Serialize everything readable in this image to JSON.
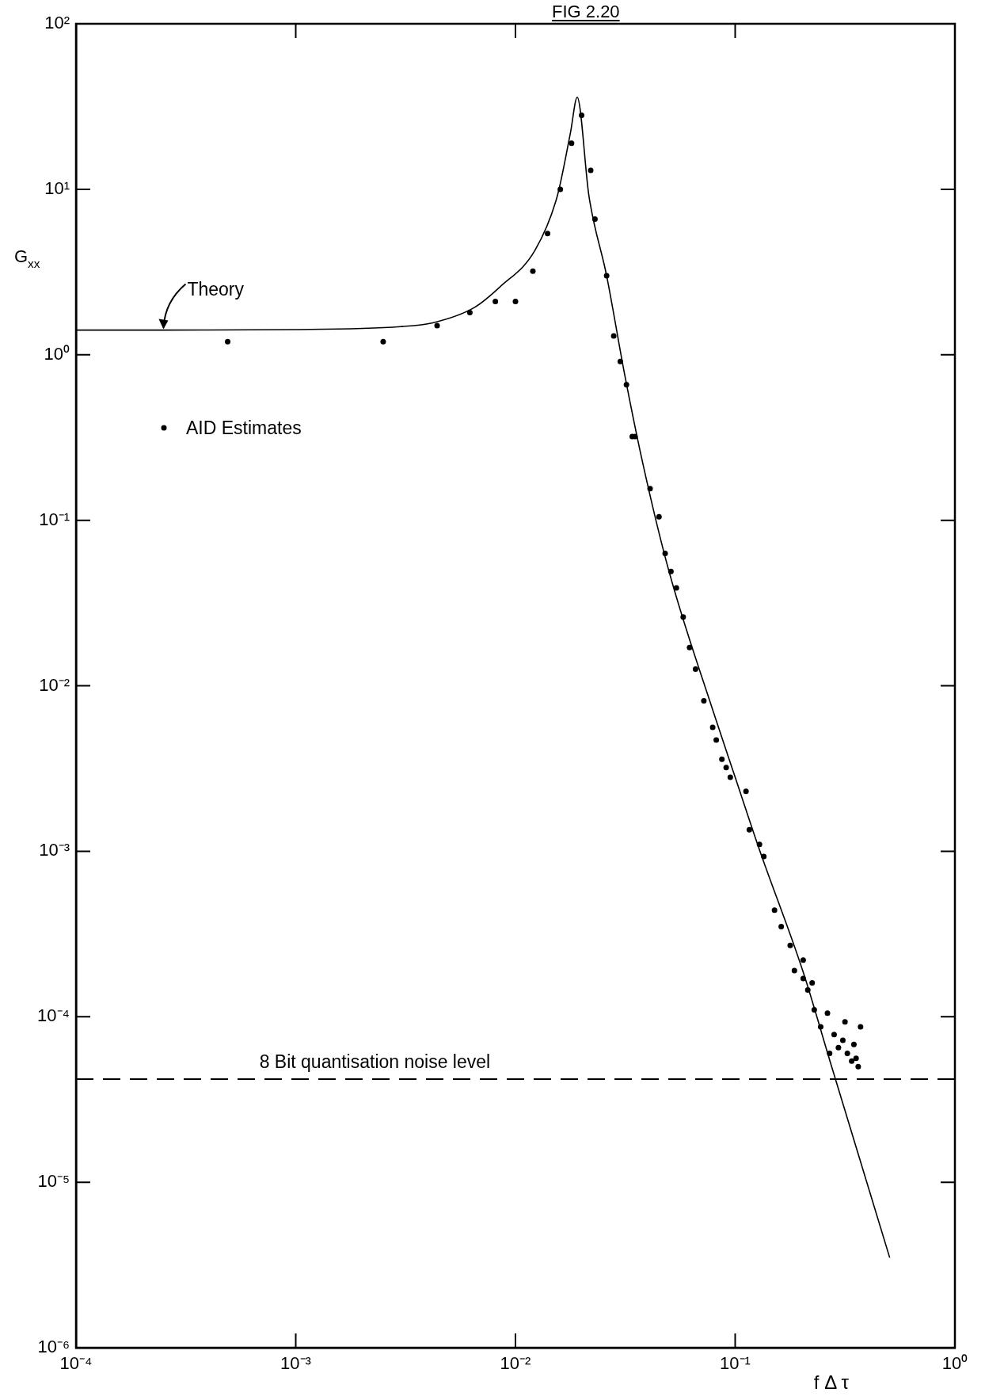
{
  "chart_data": {
    "type": "scatter",
    "title": "FIG 2.20",
    "xlabel": "f Δ τ",
    "ylabel": "G$_{xx}$",
    "log": "xy",
    "legend": "left",
    "xlim": [
      0.0001,
      1
    ],
    "ylim": [
      1e-06,
      100
    ],
    "xticks": [
      {
        "value": 0.0001,
        "label": "10⁻⁴"
      },
      {
        "value": 0.001,
        "label": "10⁻³"
      },
      {
        "value": 0.01,
        "label": "10⁻²"
      },
      {
        "value": 0.1,
        "label": "10⁻¹"
      },
      {
        "value": 1,
        "label": "10⁰"
      }
    ],
    "yticks": [
      {
        "value": 1e-06,
        "label": "10⁻⁶"
      },
      {
        "value": 1e-05,
        "label": "10⁻⁵"
      },
      {
        "value": 0.0001,
        "label": "10⁻⁴"
      },
      {
        "value": 0.001,
        "label": "10⁻³"
      },
      {
        "value": 0.01,
        "label": "10⁻²"
      },
      {
        "value": 0.1,
        "label": "10⁻¹"
      },
      {
        "value": 1,
        "label": "10⁰"
      },
      {
        "value": 10,
        "label": "10¹"
      },
      {
        "value": 100,
        "label": "10²"
      }
    ],
    "series": [
      {
        "type": "line",
        "color": "#000000",
        "marker": "none",
        "line_style": "solid",
        "x": [
          0.0001,
          0.00025,
          0.001,
          0.003,
          0.0042,
          0.0065,
          0.0085,
          0.0123,
          0.0155,
          0.0178,
          0.0191,
          0.0216,
          0.026,
          0.0314,
          0.038,
          0.05,
          0.08,
          0.1,
          0.128,
          0.204,
          0.27,
          0.505
        ],
        "values": [
          1.41,
          1.41,
          1.42,
          1.48,
          1.56,
          1.93,
          2.57,
          4.3,
          9.1,
          22,
          36,
          9.1,
          3.0,
          0.76,
          0.22,
          0.049,
          0.0068,
          0.0028,
          0.00105,
          0.000186,
          5.4e-05,
          3.5e-06
        ]
      },
      {
        "name": "AID Estimates",
        "color": "#000000",
        "marker": "circle",
        "x": [
          0.00049,
          0.0025,
          0.0044,
          0.0062,
          0.0081,
          0.01,
          0.012,
          0.014,
          0.016,
          0.018,
          0.02,
          0.022,
          0.023,
          0.026,
          0.028,
          0.03,
          0.032,
          0.034,
          0.035,
          0.041,
          0.045,
          0.048,
          0.051,
          0.054,
          0.058,
          0.062,
          0.066,
          0.072,
          0.079,
          0.082,
          0.087,
          0.091,
          0.095,
          0.112,
          0.116,
          0.129,
          0.135,
          0.151,
          0.162,
          0.178,
          0.186,
          0.204,
          0.204,
          0.214,
          0.224,
          0.229,
          0.245,
          0.263,
          0.269,
          0.282,
          0.295,
          0.309,
          0.316,
          0.324,
          0.339,
          0.347,
          0.355,
          0.363,
          0.372
        ],
        "values": [
          1.2,
          1.2,
          1.5,
          1.8,
          2.1,
          2.1,
          3.2,
          5.4,
          10,
          19,
          28,
          13,
          6.6,
          3.0,
          1.3,
          0.91,
          0.66,
          0.32,
          0.32,
          0.155,
          0.105,
          0.063,
          0.049,
          0.039,
          0.026,
          0.017,
          0.0126,
          0.0081,
          0.0056,
          0.0047,
          0.0036,
          0.0032,
          0.0028,
          0.0023,
          0.00135,
          0.0011,
          0.00093,
          0.00044,
          0.00035,
          0.00027,
          0.00019,
          0.00017,
          0.00022,
          0.000145,
          0.00016,
          0.00011,
          8.7e-05,
          0.000105,
          6e-05,
          7.8e-05,
          6.5e-05,
          7.2e-05,
          9.3e-05,
          6e-05,
          5.4e-05,
          6.8e-05,
          5.6e-05,
          5e-05,
          8.7e-05
        ]
      }
    ],
    "ref_lines": [
      {
        "axis": "y",
        "value": 4.2e-05,
        "label": "8 Bit quantisation noise level",
        "line_style": "dashed",
        "color": "#000000"
      }
    ],
    "annotations": [
      {
        "text": "Theory",
        "x": 0.00025,
        "y": 1.41
      }
    ]
  }
}
